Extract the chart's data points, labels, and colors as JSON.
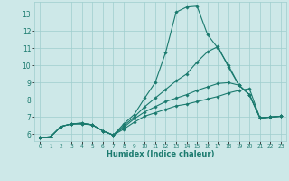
{
  "xlabel": "Humidex (Indice chaleur)",
  "bg_color": "#cde8e8",
  "grid_color": "#9ecece",
  "line_color": "#1a7a6e",
  "xlim": [
    -0.5,
    23.5
  ],
  "ylim": [
    5.6,
    13.7
  ],
  "xticks": [
    0,
    1,
    2,
    3,
    4,
    5,
    6,
    7,
    8,
    9,
    10,
    11,
    12,
    13,
    14,
    15,
    16,
    17,
    18,
    19,
    20,
    21,
    22,
    23
  ],
  "yticks": [
    6,
    7,
    8,
    9,
    10,
    11,
    12,
    13
  ],
  "lines": [
    {
      "x": [
        0,
        1,
        2,
        3,
        4,
        5,
        6,
        7,
        8,
        9,
        10,
        11,
        12,
        13,
        14,
        15,
        16,
        17,
        18,
        19,
        20,
        21,
        22,
        23
      ],
      "y": [
        5.8,
        5.85,
        6.45,
        6.6,
        6.6,
        6.55,
        6.2,
        5.95,
        6.3,
        6.7,
        7.05,
        7.25,
        7.45,
        7.65,
        7.75,
        7.9,
        8.05,
        8.2,
        8.4,
        8.55,
        8.65,
        6.95,
        7.0,
        7.05
      ]
    },
    {
      "x": [
        0,
        1,
        2,
        3,
        4,
        5,
        6,
        7,
        8,
        9,
        10,
        11,
        12,
        13,
        14,
        15,
        16,
        17,
        18,
        19,
        20,
        21,
        22,
        23
      ],
      "y": [
        5.8,
        5.85,
        6.45,
        6.6,
        6.6,
        6.55,
        6.2,
        5.95,
        6.4,
        6.9,
        7.3,
        7.6,
        7.9,
        8.1,
        8.3,
        8.55,
        8.75,
        8.95,
        9.0,
        8.85,
        8.3,
        6.95,
        7.0,
        7.05
      ]
    },
    {
      "x": [
        0,
        1,
        2,
        3,
        4,
        5,
        6,
        7,
        8,
        9,
        10,
        11,
        12,
        13,
        14,
        15,
        16,
        17,
        18,
        19,
        20,
        21,
        22,
        23
      ],
      "y": [
        5.8,
        5.85,
        6.45,
        6.6,
        6.65,
        6.55,
        6.2,
        5.95,
        6.5,
        7.0,
        7.6,
        8.1,
        8.6,
        9.1,
        9.5,
        10.2,
        10.8,
        11.1,
        9.9,
        8.85,
        8.3,
        6.95,
        7.0,
        7.05
      ]
    },
    {
      "x": [
        0,
        1,
        2,
        3,
        4,
        5,
        6,
        7,
        8,
        9,
        10,
        11,
        12,
        13,
        14,
        15,
        16,
        17,
        18,
        19,
        20,
        21,
        22,
        23
      ],
      "y": [
        5.8,
        5.85,
        6.45,
        6.6,
        6.65,
        6.55,
        6.2,
        5.95,
        6.6,
        7.15,
        8.1,
        9.0,
        10.75,
        13.1,
        13.4,
        13.45,
        11.8,
        11.0,
        10.0,
        8.85,
        8.3,
        6.95,
        7.0,
        7.05
      ]
    }
  ]
}
